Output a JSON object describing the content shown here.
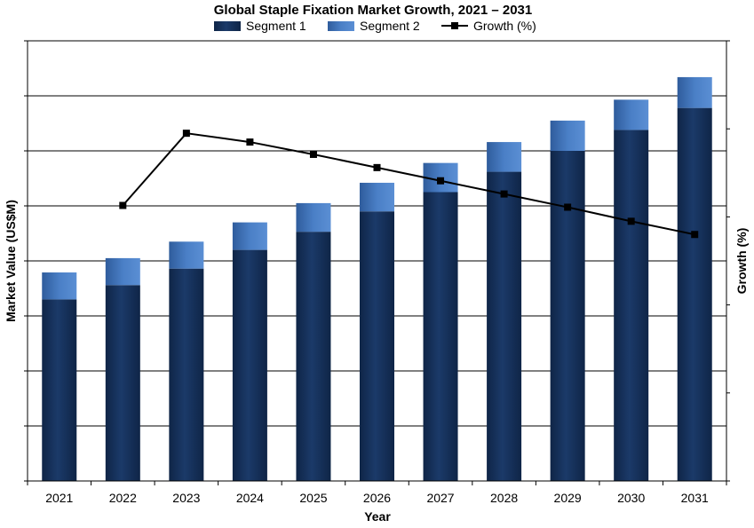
{
  "chart_data": {
    "type": "bar",
    "title": "Global Staple Fixation Market Growth, 2021 – 2031",
    "xlabel": "Year",
    "ylabel": "Market Value (US$M)",
    "y2label": "Growth (%)",
    "categories": [
      "2021",
      "2022",
      "2023",
      "2024",
      "2025",
      "2026",
      "2027",
      "2028",
      "2029",
      "2030",
      "2031"
    ],
    "stacked": true,
    "legend_position": "top",
    "grid": true,
    "y_tick_labels_shown": false,
    "ylim": [
      0,
      8
    ],
    "y2lim": [
      0,
      5
    ],
    "series": [
      {
        "name": "Segment 1",
        "type": "bar",
        "axis": "left",
        "color": "#17335e",
        "values": [
          3.3,
          3.56,
          3.86,
          4.2,
          4.53,
          4.9,
          5.25,
          5.62,
          6.0,
          6.38,
          6.78
        ]
      },
      {
        "name": "Segment 2",
        "type": "bar",
        "axis": "left",
        "color": "#3f72b8",
        "values": [
          0.49,
          0.49,
          0.49,
          0.5,
          0.52,
          0.52,
          0.53,
          0.54,
          0.55,
          0.55,
          0.56
        ]
      },
      {
        "name": "Growth (%)",
        "type": "line",
        "axis": "right",
        "color": "#000000",
        "values": [
          null,
          3.13,
          3.95,
          3.85,
          3.71,
          3.56,
          3.41,
          3.26,
          3.11,
          2.95,
          2.8
        ]
      }
    ]
  }
}
